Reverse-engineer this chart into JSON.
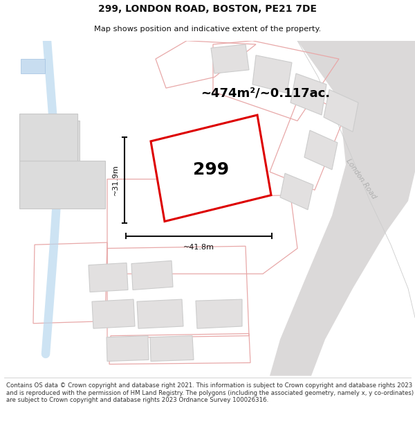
{
  "title": "299, LONDON ROAD, BOSTON, PE21 7DE",
  "subtitle": "Map shows position and indicative extent of the property.",
  "area_label": "~474m²/~0.117ac.",
  "plot_number": "299",
  "width_label": "~41.8m",
  "height_label": "~31.9m",
  "footer_text": "Contains OS data © Crown copyright and database right 2021. This information is subject to Crown copyright and database rights 2023 and is reproduced with the permission of HM Land Registry. The polygons (including the associated geometry, namely x, y co-ordinates) are subject to Crown copyright and database rights 2023 Ordnance Survey 100026316.",
  "bg_color": "#f8f7f7",
  "plot_fill": "#ffffff",
  "plot_edge": "#dd0000",
  "building_fill": "#e2e0e0",
  "building_edge": "#cccccc",
  "parcel_edge": "#e8a8a8",
  "road_fill": "#dbd9d9",
  "road_label_color": "#b0b0b0",
  "river_color": "#b8d8ee",
  "dim_color": "#111111"
}
